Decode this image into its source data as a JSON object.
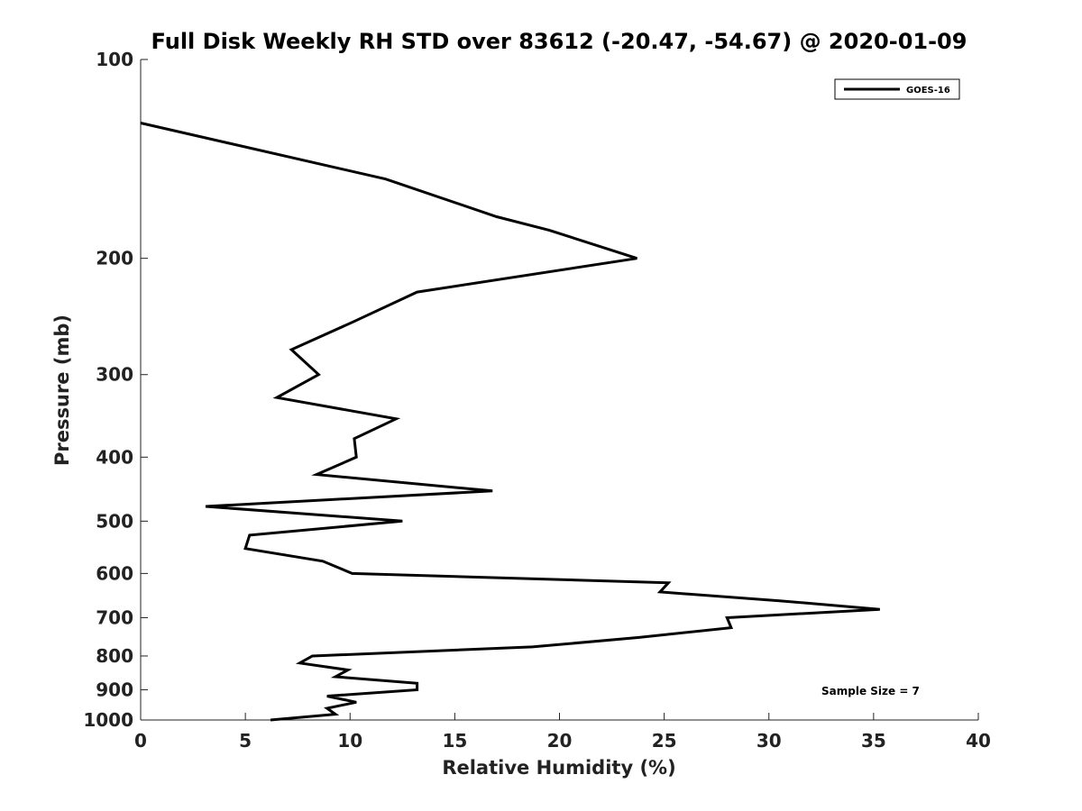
{
  "chart_data": {
    "type": "line",
    "title": "Full Disk Weekly RH STD over 83612 (-20.47, -54.67) @ 2020-01-09",
    "xlabel": "Relative Humidity (%)",
    "ylabel": "Pressure (mb)",
    "xlim": [
      0,
      40
    ],
    "ylim": [
      100,
      1000
    ],
    "yscale": "log",
    "yreversed": true,
    "x_ticks": [
      0,
      5,
      10,
      15,
      20,
      25,
      30,
      35,
      40
    ],
    "x_tick_labels": [
      "0",
      "5",
      "10",
      "15",
      "20",
      "25",
      "30",
      "35",
      "40"
    ],
    "y_ticks": [
      100,
      200,
      300,
      400,
      500,
      600,
      700,
      800,
      900,
      1000
    ],
    "y_tick_labels": [
      "100",
      "200",
      "300",
      "400",
      "500",
      "600",
      "700",
      "800",
      "900",
      "1000"
    ],
    "grid": false,
    "legend": {
      "position": "top-right",
      "entries": [
        "GOES-16"
      ]
    },
    "annotation": "Sample Size = 7",
    "series": [
      {
        "name": "GOES-16",
        "color": "#000000",
        "points": [
          [
            0.0,
            124.8
          ],
          [
            11.7,
            151.7
          ],
          [
            17.0,
            173.0
          ],
          [
            19.5,
            181.3
          ],
          [
            23.7,
            200.0
          ],
          [
            13.2,
            225.0
          ],
          [
            10.1,
            250.0
          ],
          [
            7.2,
            275.0
          ],
          [
            8.5,
            300.0
          ],
          [
            6.5,
            325.0
          ],
          [
            12.2,
            350.0
          ],
          [
            10.2,
            375.0
          ],
          [
            10.3,
            400.0
          ],
          [
            8.4,
            425.0
          ],
          [
            16.8,
            450.0
          ],
          [
            3.1,
            475.0
          ],
          [
            12.5,
            500.0
          ],
          [
            5.2,
            525.0
          ],
          [
            5.0,
            550.0
          ],
          [
            8.7,
            575.0
          ],
          [
            10.1,
            600.0
          ],
          [
            25.2,
            620.0
          ],
          [
            24.8,
            640.0
          ],
          [
            30.5,
            660.0
          ],
          [
            35.3,
            680.0
          ],
          [
            28.0,
            700.0
          ],
          [
            28.2,
            725.0
          ],
          [
            23.8,
            750.0
          ],
          [
            18.7,
            775.0
          ],
          [
            8.2,
            800.0
          ],
          [
            7.6,
            820.0
          ],
          [
            9.9,
            840.0
          ],
          [
            9.3,
            860.0
          ],
          [
            13.2,
            880.0
          ],
          [
            13.2,
            900.0
          ],
          [
            8.9,
            920.0
          ],
          [
            10.3,
            940.0
          ],
          [
            8.9,
            960.0
          ],
          [
            9.3,
            980.0
          ],
          [
            6.2,
            1000.0
          ]
        ]
      }
    ]
  }
}
